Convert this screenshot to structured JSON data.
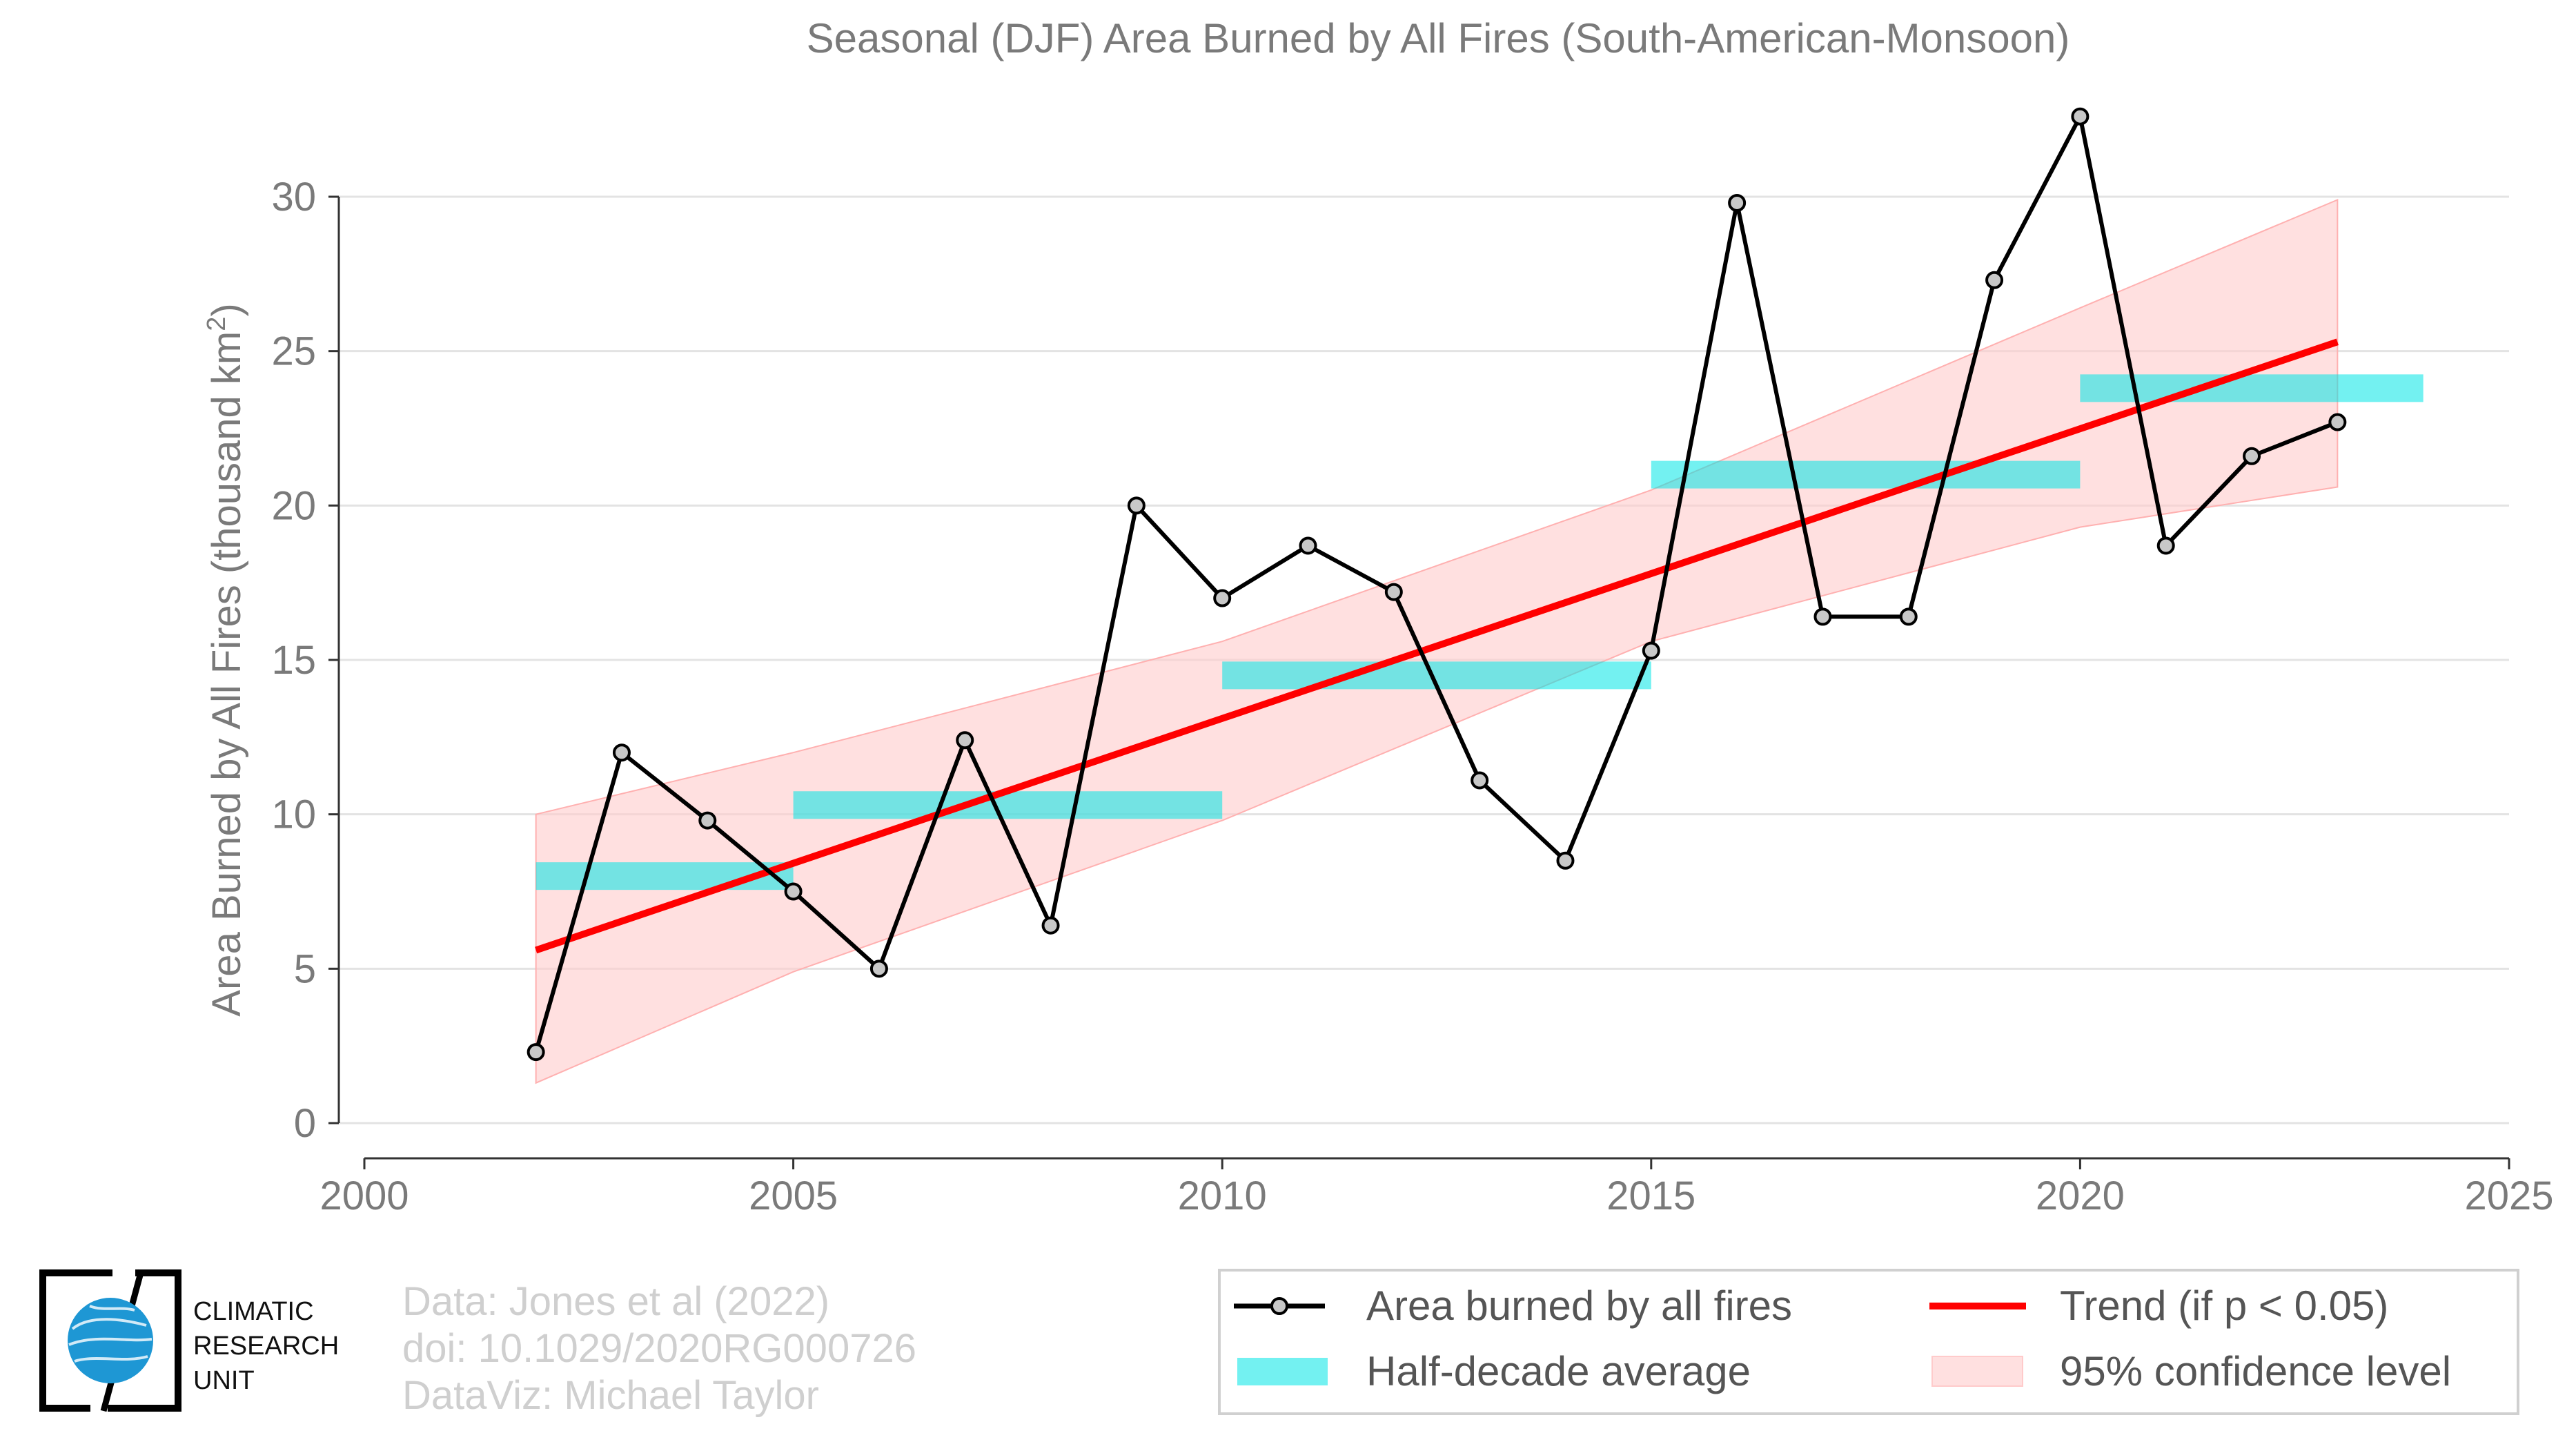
{
  "chart_data": {
    "type": "line",
    "title": "Seasonal (DJF) Area Burned by All Fires (South-American-Monsoon)",
    "ylabel": "Area Burned by All Fires (thousand km",
    "ylabel_sup": "2",
    "ylabel_end": ")",
    "xlabel": "",
    "xlim": [
      2000,
      2025
    ],
    "ylim": [
      0,
      30
    ],
    "x_ticks": [
      2000,
      2005,
      2010,
      2015,
      2020,
      2025
    ],
    "y_ticks": [
      0,
      5,
      10,
      15,
      20,
      25,
      30
    ],
    "grid": "horizontal",
    "legend_position": "bottom-right",
    "series": [
      {
        "name": "Area burned by all fires",
        "kind": "line-markers",
        "color": "#000000",
        "marker_fill": "#c8c8c8",
        "x": [
          2002,
          2003,
          2004,
          2005,
          2006,
          2007,
          2008,
          2009,
          2010,
          2011,
          2012,
          2013,
          2014,
          2015,
          2016,
          2017,
          2018,
          2019,
          2020,
          2021,
          2022,
          2023
        ],
        "y": [
          2.3,
          12.0,
          9.8,
          7.5,
          5.0,
          12.4,
          6.4,
          20.0,
          17.0,
          18.7,
          17.2,
          11.1,
          8.5,
          15.3,
          29.8,
          16.4,
          16.4,
          27.3,
          32.6,
          18.7,
          21.6,
          22.7
        ]
      },
      {
        "name": "Half-decade average",
        "kind": "step-bars",
        "color": "#00e5e5",
        "segments": [
          {
            "x0": 2002,
            "x1": 2005,
            "y": 8.0
          },
          {
            "x0": 2005,
            "x1": 2010,
            "y": 10.3
          },
          {
            "x0": 2010,
            "x1": 2015,
            "y": 14.5
          },
          {
            "x0": 2015,
            "x1": 2020,
            "y": 21.0
          },
          {
            "x0": 2020,
            "x1": 2024,
            "y": 23.8
          }
        ]
      },
      {
        "name": "Trend (if p < 0.05)",
        "kind": "trend",
        "color": "#ff0000",
        "x": [
          2002,
          2023
        ],
        "y": [
          5.6,
          25.3
        ]
      },
      {
        "name": "95% confidence level",
        "kind": "band",
        "color": "#ffcccc",
        "x": [
          2002,
          2005,
          2010,
          2015,
          2020,
          2023
        ],
        "lower": [
          1.3,
          4.9,
          9.8,
          15.6,
          19.3,
          20.6
        ],
        "upper": [
          10.0,
          12.0,
          15.6,
          20.5,
          26.4,
          29.9
        ]
      }
    ]
  },
  "credits": {
    "line1": "Data: Jones et al (2022)",
    "line2": "doi: 10.1029/2020RG000726",
    "line3": "DataViz: Michael Taylor"
  },
  "logo": {
    "line1": "CLIMATIC",
    "line2": "RESEARCH",
    "line3": "UNIT"
  }
}
